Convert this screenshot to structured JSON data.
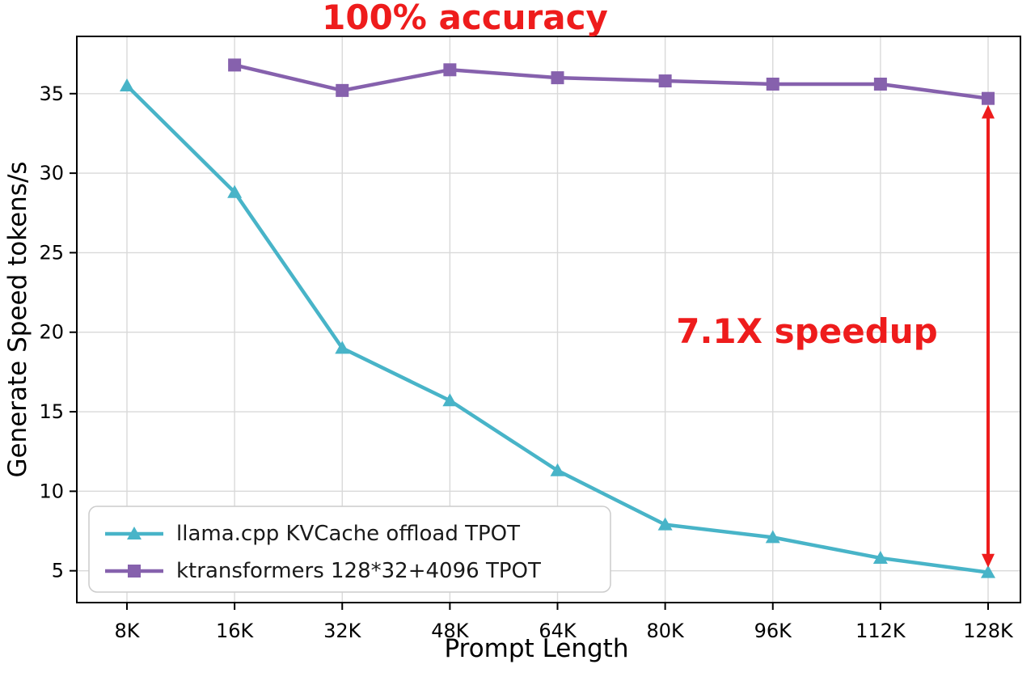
{
  "figure": {
    "background": "#ffffff"
  },
  "annotations": {
    "title": {
      "text": "100% accuracy",
      "color": "#ee1c1c"
    },
    "speedup": {
      "text": "7.1X speedup",
      "color": "#ee1c1c"
    },
    "arrow": {
      "x_category": "128K",
      "from_value": 34.3,
      "to_value": 5.2,
      "color": "#ee1c1c"
    }
  },
  "chart_data": {
    "type": "line",
    "categories": [
      "8K",
      "16K",
      "32K",
      "48K",
      "64K",
      "80K",
      "96K",
      "112K",
      "128K"
    ],
    "series": [
      {
        "name": "llama.cpp KVCache offload TPOT",
        "color": "#48b4c8",
        "marker": "triangle",
        "values": [
          35.5,
          28.8,
          19.0,
          15.7,
          11.3,
          7.9,
          7.1,
          5.8,
          4.9
        ]
      },
      {
        "name": "ktransformers 128*32+4096 TPOT",
        "color": "#8661ad",
        "marker": "square",
        "values": [
          null,
          36.8,
          35.2,
          36.5,
          36.0,
          35.8,
          35.6,
          35.6,
          34.7
        ]
      }
    ],
    "xlabel": "Prompt Length",
    "ylabel": "Generate Speed tokens/s",
    "ylim": [
      3.0,
      38.6
    ],
    "yticks": [
      5,
      10,
      15,
      20,
      25,
      30,
      35
    ],
    "grid": true,
    "grid_color": "#d9d9d9",
    "axis_color": "#000000",
    "tick_label_size": 24,
    "axis_label_size": 31,
    "legend_position": "lower left",
    "legend_font_size": 26
  }
}
